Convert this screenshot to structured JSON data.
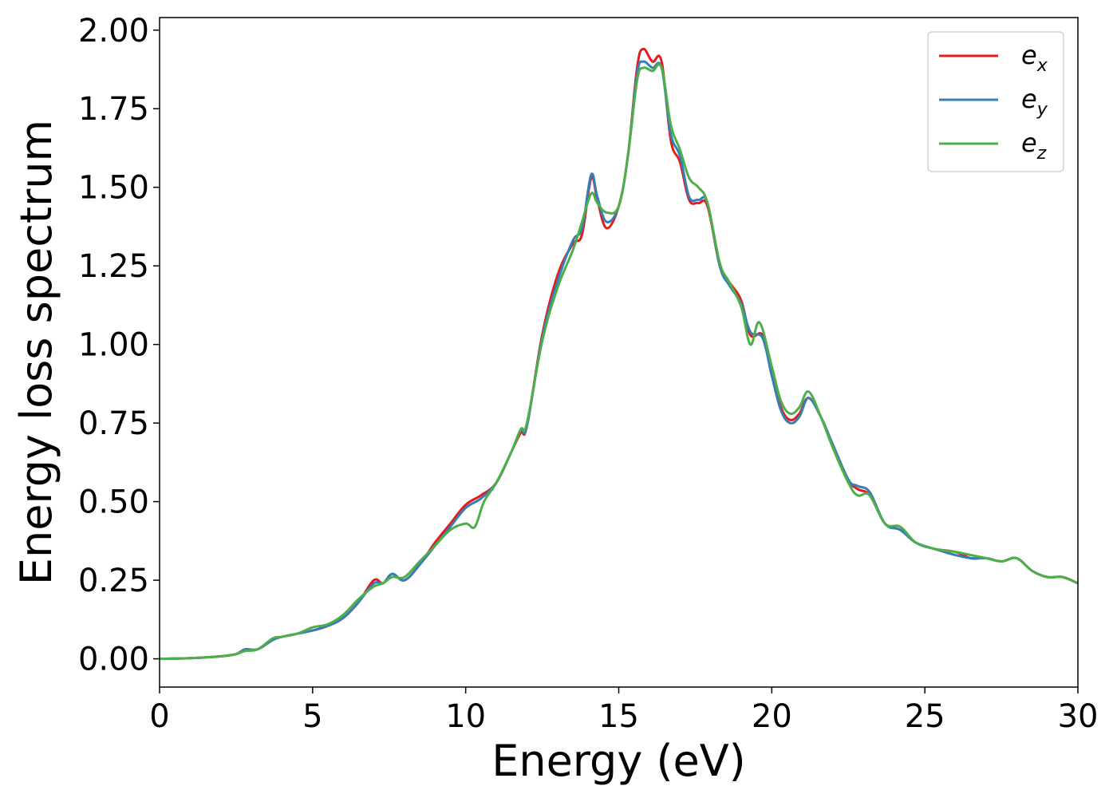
{
  "chart_data": {
    "type": "line",
    "xlabel": "Energy (eV)",
    "ylabel": "Energy loss spectrum",
    "xlim": [
      0,
      30
    ],
    "ylim": [
      -0.09,
      2.04
    ],
    "xticks": [
      0,
      5,
      10,
      15,
      20,
      25,
      30
    ],
    "xtick_labels": [
      "0",
      "5",
      "10",
      "15",
      "20",
      "25",
      "30"
    ],
    "yticks": [
      0,
      0.25,
      0.5,
      0.75,
      1.0,
      1.25,
      1.5,
      1.75,
      2.0
    ],
    "ytick_labels": [
      "0.00",
      "0.25",
      "0.50",
      "0.75",
      "1.00",
      "1.25",
      "1.50",
      "1.75",
      "2.00"
    ],
    "grid": false,
    "legend_position": "top-right",
    "series": [
      {
        "name": "e_x",
        "legend_base": "e",
        "legend_sub": "x",
        "color": "#e41a1c",
        "points": [
          [
            0,
            0
          ],
          [
            1,
            0.002
          ],
          [
            2,
            0.008
          ],
          [
            2.5,
            0.015
          ],
          [
            2.8,
            0.03
          ],
          [
            3.2,
            0.03
          ],
          [
            3.7,
            0.06
          ],
          [
            4,
            0.07
          ],
          [
            4.5,
            0.08
          ],
          [
            5,
            0.09
          ],
          [
            5.5,
            0.105
          ],
          [
            6,
            0.13
          ],
          [
            6.5,
            0.18
          ],
          [
            7,
            0.25
          ],
          [
            7.3,
            0.24
          ],
          [
            7.6,
            0.27
          ],
          [
            8,
            0.25
          ],
          [
            8.5,
            0.3
          ],
          [
            9,
            0.37
          ],
          [
            9.5,
            0.43
          ],
          [
            10,
            0.49
          ],
          [
            10.5,
            0.52
          ],
          [
            11,
            0.56
          ],
          [
            11.5,
            0.66
          ],
          [
            11.8,
            0.72
          ],
          [
            12,
            0.74
          ],
          [
            12.5,
            1.03
          ],
          [
            13,
            1.22
          ],
          [
            13.5,
            1.32
          ],
          [
            13.8,
            1.35
          ],
          [
            14.1,
            1.53
          ],
          [
            14.3,
            1.46
          ],
          [
            14.6,
            1.37
          ],
          [
            15,
            1.44
          ],
          [
            15.3,
            1.6
          ],
          [
            15.6,
            1.88
          ],
          [
            15.8,
            1.94
          ],
          [
            16.1,
            1.9
          ],
          [
            16.4,
            1.9
          ],
          [
            16.7,
            1.65
          ],
          [
            17,
            1.58
          ],
          [
            17.3,
            1.46
          ],
          [
            17.6,
            1.45
          ],
          [
            17.9,
            1.44
          ],
          [
            18.3,
            1.25
          ],
          [
            18.6,
            1.2
          ],
          [
            19,
            1.14
          ],
          [
            19.3,
            1.03
          ],
          [
            19.7,
            1.03
          ],
          [
            20,
            0.92
          ],
          [
            20.3,
            0.8
          ],
          [
            20.6,
            0.76
          ],
          [
            20.9,
            0.78
          ],
          [
            21.2,
            0.83
          ],
          [
            21.6,
            0.77
          ],
          [
            22,
            0.68
          ],
          [
            22.5,
            0.57
          ],
          [
            22.8,
            0.54
          ],
          [
            23.2,
            0.52
          ],
          [
            23.7,
            0.43
          ],
          [
            24.2,
            0.41
          ],
          [
            24.7,
            0.37
          ],
          [
            25.3,
            0.35
          ],
          [
            26,
            0.34
          ],
          [
            26.5,
            0.32
          ],
          [
            27,
            0.32
          ],
          [
            27.5,
            0.31
          ],
          [
            28,
            0.32
          ],
          [
            28.5,
            0.28
          ],
          [
            29,
            0.26
          ],
          [
            29.5,
            0.26
          ],
          [
            30,
            0.24
          ]
        ]
      },
      {
        "name": "e_y",
        "legend_base": "e",
        "legend_sub": "y",
        "color": "#377eb8",
        "points": [
          [
            0,
            0
          ],
          [
            1,
            0.002
          ],
          [
            2,
            0.008
          ],
          [
            2.5,
            0.015
          ],
          [
            2.8,
            0.03
          ],
          [
            3.2,
            0.03
          ],
          [
            3.7,
            0.06
          ],
          [
            4,
            0.07
          ],
          [
            4.5,
            0.08
          ],
          [
            5,
            0.09
          ],
          [
            5.5,
            0.105
          ],
          [
            6,
            0.13
          ],
          [
            6.5,
            0.18
          ],
          [
            7,
            0.24
          ],
          [
            7.3,
            0.24
          ],
          [
            7.6,
            0.27
          ],
          [
            8,
            0.25
          ],
          [
            8.5,
            0.3
          ],
          [
            9,
            0.36
          ],
          [
            9.5,
            0.42
          ],
          [
            10,
            0.48
          ],
          [
            10.5,
            0.51
          ],
          [
            11,
            0.56
          ],
          [
            11.5,
            0.66
          ],
          [
            11.8,
            0.73
          ],
          [
            12,
            0.74
          ],
          [
            12.5,
            1.02
          ],
          [
            13,
            1.2
          ],
          [
            13.5,
            1.33
          ],
          [
            13.8,
            1.37
          ],
          [
            14.1,
            1.54
          ],
          [
            14.3,
            1.47
          ],
          [
            14.6,
            1.39
          ],
          [
            15,
            1.44
          ],
          [
            15.3,
            1.6
          ],
          [
            15.6,
            1.86
          ],
          [
            15.8,
            1.9
          ],
          [
            16.1,
            1.88
          ],
          [
            16.4,
            1.88
          ],
          [
            16.7,
            1.67
          ],
          [
            17,
            1.6
          ],
          [
            17.3,
            1.47
          ],
          [
            17.6,
            1.46
          ],
          [
            17.9,
            1.45
          ],
          [
            18.3,
            1.25
          ],
          [
            18.6,
            1.19
          ],
          [
            19,
            1.13
          ],
          [
            19.3,
            1.04
          ],
          [
            19.7,
            1.02
          ],
          [
            20,
            0.9
          ],
          [
            20.3,
            0.79
          ],
          [
            20.6,
            0.75
          ],
          [
            20.9,
            0.77
          ],
          [
            21.2,
            0.83
          ],
          [
            21.6,
            0.77
          ],
          [
            22,
            0.68
          ],
          [
            22.5,
            0.57
          ],
          [
            22.8,
            0.55
          ],
          [
            23.2,
            0.53
          ],
          [
            23.7,
            0.43
          ],
          [
            24.2,
            0.41
          ],
          [
            24.7,
            0.37
          ],
          [
            25.3,
            0.35
          ],
          [
            26,
            0.33
          ],
          [
            26.5,
            0.32
          ],
          [
            27,
            0.32
          ],
          [
            27.5,
            0.31
          ],
          [
            28,
            0.32
          ],
          [
            28.5,
            0.28
          ],
          [
            29,
            0.26
          ],
          [
            29.5,
            0.26
          ],
          [
            30,
            0.24
          ]
        ]
      },
      {
        "name": "e_z",
        "legend_base": "e",
        "legend_sub": "z",
        "color": "#4daf4a",
        "points": [
          [
            0,
            0
          ],
          [
            1,
            0.002
          ],
          [
            2,
            0.008
          ],
          [
            2.5,
            0.015
          ],
          [
            2.8,
            0.025
          ],
          [
            3.2,
            0.03
          ],
          [
            3.7,
            0.065
          ],
          [
            4,
            0.07
          ],
          [
            4.5,
            0.08
          ],
          [
            5,
            0.1
          ],
          [
            5.5,
            0.11
          ],
          [
            6,
            0.14
          ],
          [
            6.5,
            0.19
          ],
          [
            7,
            0.23
          ],
          [
            7.3,
            0.24
          ],
          [
            7.6,
            0.26
          ],
          [
            8,
            0.26
          ],
          [
            8.5,
            0.31
          ],
          [
            9,
            0.36
          ],
          [
            9.5,
            0.41
          ],
          [
            10,
            0.43
          ],
          [
            10.3,
            0.42
          ],
          [
            10.6,
            0.5
          ],
          [
            11,
            0.56
          ],
          [
            11.5,
            0.66
          ],
          [
            11.8,
            0.73
          ],
          [
            12,
            0.75
          ],
          [
            12.5,
            1.01
          ],
          [
            13,
            1.18
          ],
          [
            13.5,
            1.3
          ],
          [
            13.8,
            1.39
          ],
          [
            14.1,
            1.48
          ],
          [
            14.3,
            1.45
          ],
          [
            14.6,
            1.42
          ],
          [
            15,
            1.44
          ],
          [
            15.3,
            1.6
          ],
          [
            15.6,
            1.84
          ],
          [
            15.8,
            1.88
          ],
          [
            16.1,
            1.87
          ],
          [
            16.4,
            1.88
          ],
          [
            16.7,
            1.7
          ],
          [
            17,
            1.62
          ],
          [
            17.3,
            1.53
          ],
          [
            17.6,
            1.5
          ],
          [
            17.9,
            1.45
          ],
          [
            18.3,
            1.26
          ],
          [
            18.6,
            1.2
          ],
          [
            19,
            1.12
          ],
          [
            19.3,
            1.0
          ],
          [
            19.6,
            1.07
          ],
          [
            20,
            0.93
          ],
          [
            20.3,
            0.82
          ],
          [
            20.6,
            0.78
          ],
          [
            20.9,
            0.8
          ],
          [
            21.2,
            0.85
          ],
          [
            21.6,
            0.77
          ],
          [
            22,
            0.67
          ],
          [
            22.5,
            0.56
          ],
          [
            22.8,
            0.52
          ],
          [
            23.2,
            0.52
          ],
          [
            23.7,
            0.43
          ],
          [
            24.2,
            0.42
          ],
          [
            24.7,
            0.37
          ],
          [
            25.3,
            0.35
          ],
          [
            26,
            0.34
          ],
          [
            26.5,
            0.33
          ],
          [
            27,
            0.32
          ],
          [
            27.5,
            0.31
          ],
          [
            28,
            0.32
          ],
          [
            28.5,
            0.28
          ],
          [
            29,
            0.26
          ],
          [
            29.5,
            0.26
          ],
          [
            30,
            0.24
          ]
        ]
      }
    ]
  }
}
